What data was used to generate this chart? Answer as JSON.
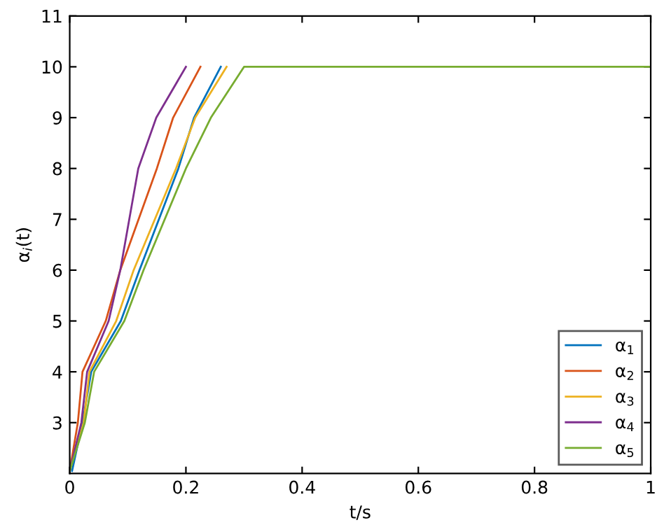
{
  "chart_data": {
    "type": "line",
    "xlabel": "t/s",
    "ylabel": "α$_{i}$(t)",
    "xlim": [
      0,
      1
    ],
    "ylim": [
      2,
      11
    ],
    "xticks": [
      0,
      0.2,
      0.4,
      0.6,
      0.8,
      1
    ],
    "yticks": [
      3,
      4,
      5,
      6,
      7,
      8,
      9,
      10,
      11
    ],
    "legend": "bottom right",
    "grid": false,
    "series": [
      {
        "name": "α$_{1}$",
        "color": "#0072bd",
        "x": [
          0.004,
          0.022,
          0.037,
          0.088,
          0.12,
          0.187,
          0.214,
          0.26
        ],
        "values": [
          2.05,
          3,
          4,
          5,
          6,
          8,
          9,
          10
        ]
      },
      {
        "name": "α$_{2}$",
        "color": "#d95319",
        "x": [
          0,
          0.014,
          0.022,
          0.062,
          0.087,
          0.15,
          0.178,
          0.225
        ],
        "values": [
          2.05,
          3,
          4,
          5,
          6,
          8,
          9,
          10
        ]
      },
      {
        "name": "α$_{3}$",
        "color": "#edb120",
        "x": [
          0,
          0.024,
          0.034,
          0.08,
          0.11,
          0.183,
          0.216,
          0.27
        ],
        "values": [
          2.05,
          3,
          4,
          5,
          6,
          8,
          9,
          10
        ]
      },
      {
        "name": "α$_{4}$",
        "color": "#7e2f8e",
        "x": [
          0,
          0.02,
          0.03,
          0.067,
          0.087,
          0.118,
          0.149,
          0.2
        ],
        "values": [
          2.05,
          3,
          4,
          5,
          6,
          8,
          9,
          10
        ]
      },
      {
        "name": "α$_{5}$",
        "color": "#77ac30",
        "x": [
          0,
          0.026,
          0.042,
          0.094,
          0.127,
          0.2,
          0.243,
          0.3,
          1
        ],
        "values": [
          2.05,
          3,
          4,
          5,
          6,
          8,
          9,
          10,
          10
        ]
      }
    ]
  }
}
